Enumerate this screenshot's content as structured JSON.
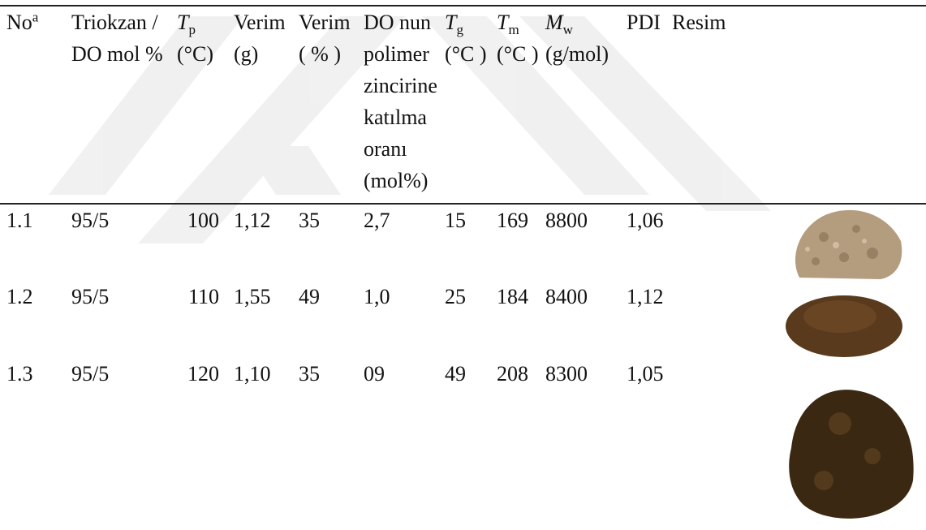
{
  "table": {
    "headers": [
      {
        "text": "No",
        "sup": "a"
      },
      {
        "text": "Triokzan / DO mol %"
      },
      {
        "symbol": "T",
        "sub": "p",
        "unit": "(°C)"
      },
      {
        "text": "Verim (g)"
      },
      {
        "text": "Verim ( % )"
      },
      {
        "text": "DO nun polimer zincirine katılma oranı (mol%)"
      },
      {
        "symbol": "T",
        "sub": "g",
        "unit": "(°C )"
      },
      {
        "symbol": "T",
        "sub": "m",
        "unit": "(°C )"
      },
      {
        "symbol": "M",
        "sub": "w",
        "unit": "(g/mol)"
      },
      {
        "text": "PDI"
      },
      {
        "text": "Resim"
      }
    ],
    "rows": [
      [
        "1.1",
        "95/5",
        100,
        "1,12",
        35,
        "2,7",
        15,
        169,
        8800,
        "1,06"
      ],
      [
        "1.2",
        "95/5",
        110,
        "1,55",
        49,
        "1,0",
        25,
        184,
        8400,
        "1,12"
      ],
      [
        "1.3",
        "95/5",
        120,
        "1,10",
        35,
        "09",
        49,
        208,
        8300,
        "1,05"
      ]
    ]
  }
}
